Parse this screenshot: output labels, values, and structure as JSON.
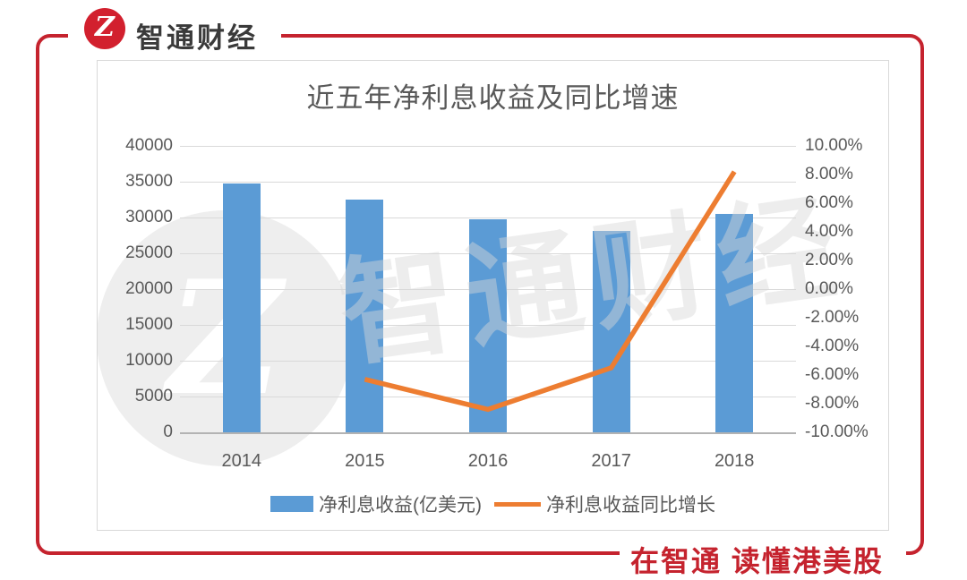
{
  "brand": {
    "logo_glyph": "Z",
    "logo_name": "智通财经"
  },
  "slogan": "在智通  读懂港美股",
  "watermark": {
    "glyph": "Z",
    "text": "智通财经"
  },
  "colors": {
    "frame_red": "#c5232e",
    "logo_red": "#d2202e",
    "bar_blue": "#5b9bd5",
    "line_orange": "#ed7d31",
    "grid_gray": "#d9d9d9",
    "text_gray": "#595959"
  },
  "chart_data": {
    "type": "bar",
    "combo": "bar+line",
    "title": "近五年净利息收益及同比增速",
    "categories": [
      "2014",
      "2015",
      "2016",
      "2017",
      "2018"
    ],
    "series": [
      {
        "name": "净利息收益(亿美元)",
        "type": "bar",
        "axis": "left",
        "color": "#5b9bd5",
        "values": [
          34700,
          32530,
          29810,
          28180,
          30490
        ]
      },
      {
        "name": "净利息收益同比增长",
        "type": "line",
        "axis": "right",
        "color": "#ed7d31",
        "values": [
          null,
          -6.3,
          -8.4,
          -5.5,
          8.2
        ]
      }
    ],
    "left_axis": {
      "min": 0,
      "max": 40000,
      "step": 5000,
      "ticks": [
        "40000",
        "35000",
        "30000",
        "25000",
        "20000",
        "15000",
        "10000",
        "5000",
        "0"
      ]
    },
    "right_axis": {
      "min": -10,
      "max": 10,
      "step": 2,
      "ticks": [
        "10.00%",
        "8.00%",
        "6.00%",
        "4.00%",
        "2.00%",
        "0.00%",
        "-2.00%",
        "-4.00%",
        "-6.00%",
        "-8.00%",
        "-10.00%"
      ]
    },
    "grid": true,
    "legend_position": "bottom"
  }
}
